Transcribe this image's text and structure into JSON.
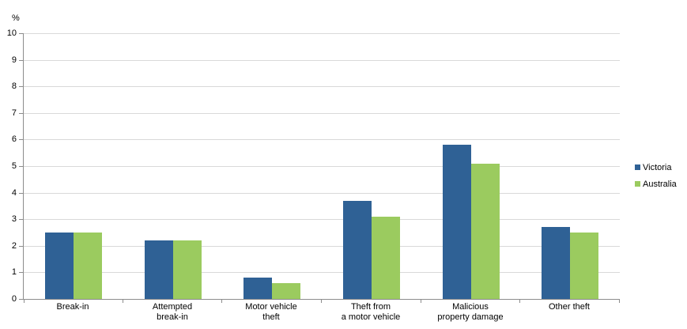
{
  "chart_data": {
    "type": "bar",
    "title": "",
    "ylabel": "%",
    "xlabel": "",
    "ylim": [
      0,
      10
    ],
    "yticks": [
      0,
      1,
      2,
      3,
      4,
      5,
      6,
      7,
      8,
      9,
      10
    ],
    "grid": "horizontal",
    "legend_position": "right",
    "categories": [
      "Break-in",
      "Attempted break-in",
      "Motor vehicle theft",
      "Theft from a motor vehicle",
      "Malicious property damage",
      "Other theft"
    ],
    "category_label_lines": [
      [
        "Break-in"
      ],
      [
        "Attempted",
        "break-in"
      ],
      [
        "Motor vehicle",
        "theft"
      ],
      [
        "Theft from",
        "a motor vehicle"
      ],
      [
        "Malicious",
        "property damage"
      ],
      [
        "Other theft"
      ]
    ],
    "series": [
      {
        "name": "Victoria",
        "color": "#2f6195",
        "values": [
          2.5,
          2.2,
          0.8,
          3.7,
          5.8,
          2.7
        ]
      },
      {
        "name": "Australia",
        "color": "#9bcb5f",
        "values": [
          2.5,
          2.2,
          0.6,
          3.1,
          5.1,
          2.5
        ]
      }
    ]
  },
  "colors": {
    "gridline": "#d9d9d9",
    "axis": "#8c8c8c",
    "victoria": "#2f6195",
    "australia": "#9bcb5f",
    "text": "#000000"
  }
}
